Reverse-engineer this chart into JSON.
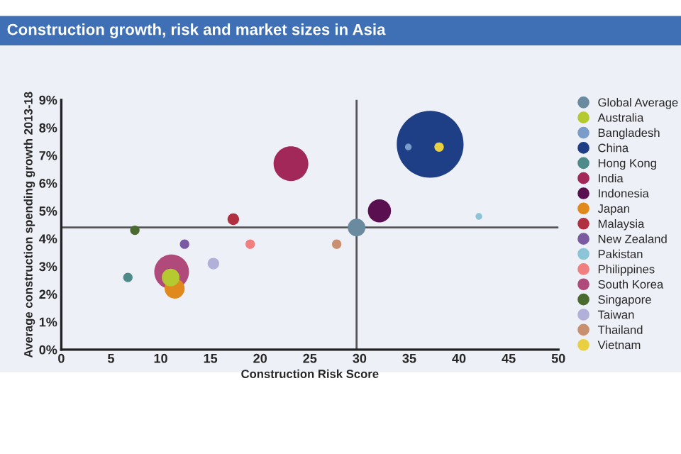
{
  "chart_data": {
    "type": "bubble",
    "title": "Construction growth, risk and market sizes in Asia",
    "xlabel": "Construction Risk Score",
    "ylabel": "Average construction spending growth 2013-18",
    "xlim": [
      0,
      50
    ],
    "xticks": [
      0,
      5,
      10,
      15,
      20,
      25,
      30,
      35,
      40,
      45,
      50
    ],
    "ylim": [
      0,
      9
    ],
    "yticks": [
      {
        "value": 0,
        "label": "0%"
      },
      {
        "value": 1,
        "label": "1%"
      },
      {
        "value": 2,
        "label": "2%"
      },
      {
        "value": 3,
        "label": "3%"
      },
      {
        "value": 4,
        "label": "4%"
      },
      {
        "value": 5,
        "label": "5%"
      },
      {
        "value": 6,
        "label": "6%"
      },
      {
        "value": 7,
        "label": "7%"
      },
      {
        "value": 8,
        "label": "8%"
      },
      {
        "value": 9,
        "label": "9%"
      }
    ],
    "grid": false,
    "legend": "right",
    "ref_lines": [
      {
        "axis": "x",
        "value": 29.7,
        "color": "#555555"
      },
      {
        "axis": "y",
        "value": 4.4,
        "color": "#555555"
      }
    ],
    "series": [
      {
        "name": "Global Average",
        "color": "#6a8aa0",
        "x": [
          29.7
        ],
        "values": [
          4.4
        ],
        "sizes": [
          0.07
        ]
      },
      {
        "name": "Australia",
        "color": "#b5c930",
        "x": [
          11.0
        ],
        "values": [
          2.6
        ],
        "sizes": [
          0.07
        ]
      },
      {
        "name": "Bangladesh",
        "color": "#7a9cc8",
        "x": [
          34.9
        ],
        "values": [
          7.3
        ],
        "sizes": [
          0.01
        ]
      },
      {
        "name": "China",
        "color": "#1e3f85",
        "x": [
          37.1
        ],
        "values": [
          7.4
        ],
        "sizes": [
          1
        ]
      },
      {
        "name": "Hong Kong",
        "color": "#4f8a8b",
        "x": [
          6.7
        ],
        "values": [
          2.6
        ],
        "sizes": [
          0.02
        ]
      },
      {
        "name": "India",
        "color": "#a3285a",
        "x": [
          23.1
        ],
        "values": [
          6.7
        ],
        "sizes": [
          0.27
        ]
      },
      {
        "name": "Indonesia",
        "color": "#5a0f50",
        "x": [
          32.0
        ],
        "values": [
          5.0
        ],
        "sizes": [
          0.12
        ]
      },
      {
        "name": "Japan",
        "color": "#e08a1e",
        "x": [
          11.4
        ],
        "values": [
          2.2
        ],
        "sizes": [
          0.09
        ]
      },
      {
        "name": "Malaysia",
        "color": "#b03040",
        "x": [
          17.3
        ],
        "values": [
          4.7
        ],
        "sizes": [
          0.03
        ]
      },
      {
        "name": "New Zealand",
        "color": "#7a5aa0",
        "x": [
          12.4
        ],
        "values": [
          3.8
        ],
        "sizes": [
          0.02
        ]
      },
      {
        "name": "Pakistan",
        "color": "#8cc4d8",
        "x": [
          42.0
        ],
        "values": [
          4.8
        ],
        "sizes": [
          0.01
        ]
      },
      {
        "name": "Philippines",
        "color": "#f08080",
        "x": [
          19.0
        ],
        "values": [
          3.8
        ],
        "sizes": [
          0.02
        ]
      },
      {
        "name": "South Korea",
        "color": "#b04a7a",
        "x": [
          11.1
        ],
        "values": [
          2.8
        ],
        "sizes": [
          0.27
        ]
      },
      {
        "name": "Singapore",
        "color": "#4a6a30",
        "x": [
          7.4
        ],
        "values": [
          4.3
        ],
        "sizes": [
          0.02
        ]
      },
      {
        "name": "Taiwan",
        "color": "#b0b0d8",
        "x": [
          15.3
        ],
        "values": [
          3.1
        ],
        "sizes": [
          0.03
        ]
      },
      {
        "name": "Thailand",
        "color": "#c89070",
        "x": [
          27.7
        ],
        "values": [
          3.8
        ],
        "sizes": [
          0.02
        ]
      },
      {
        "name": "Vietnam",
        "color": "#e8d040",
        "x": [
          38.0
        ],
        "values": [
          7.3
        ],
        "sizes": [
          0.02
        ]
      }
    ]
  }
}
